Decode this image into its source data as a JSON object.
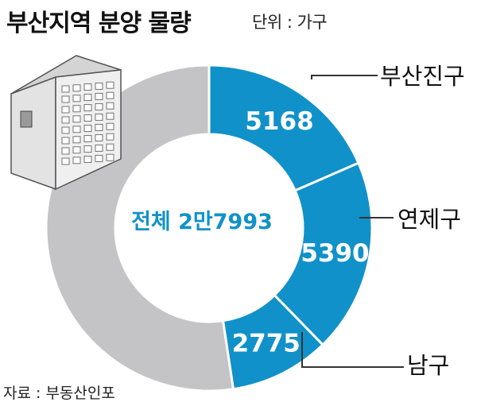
{
  "header": {
    "title": "부산지역 분양 물량",
    "unit": "단위 : 가구"
  },
  "footer": {
    "source": "자료 : 부동산인포"
  },
  "colors": {
    "highlight": "#1191c9",
    "rest": "#c4c4c6",
    "text": "#111111"
  },
  "chart_data": {
    "type": "pie",
    "total": 27993,
    "total_label": "전체 2만7993",
    "slices": [
      {
        "name": "부산진구",
        "value": 5168,
        "label": "5168",
        "color": "#1191c9"
      },
      {
        "name": "연제구",
        "value": 5390,
        "label": "5390",
        "color": "#1191c9"
      },
      {
        "name": "남구",
        "value": 2775,
        "label": "2775",
        "color": "#1191c9"
      },
      {
        "name": "",
        "value": 14660,
        "label": "",
        "color": "#c4c4c6"
      }
    ],
    "legend": "callout-right"
  }
}
